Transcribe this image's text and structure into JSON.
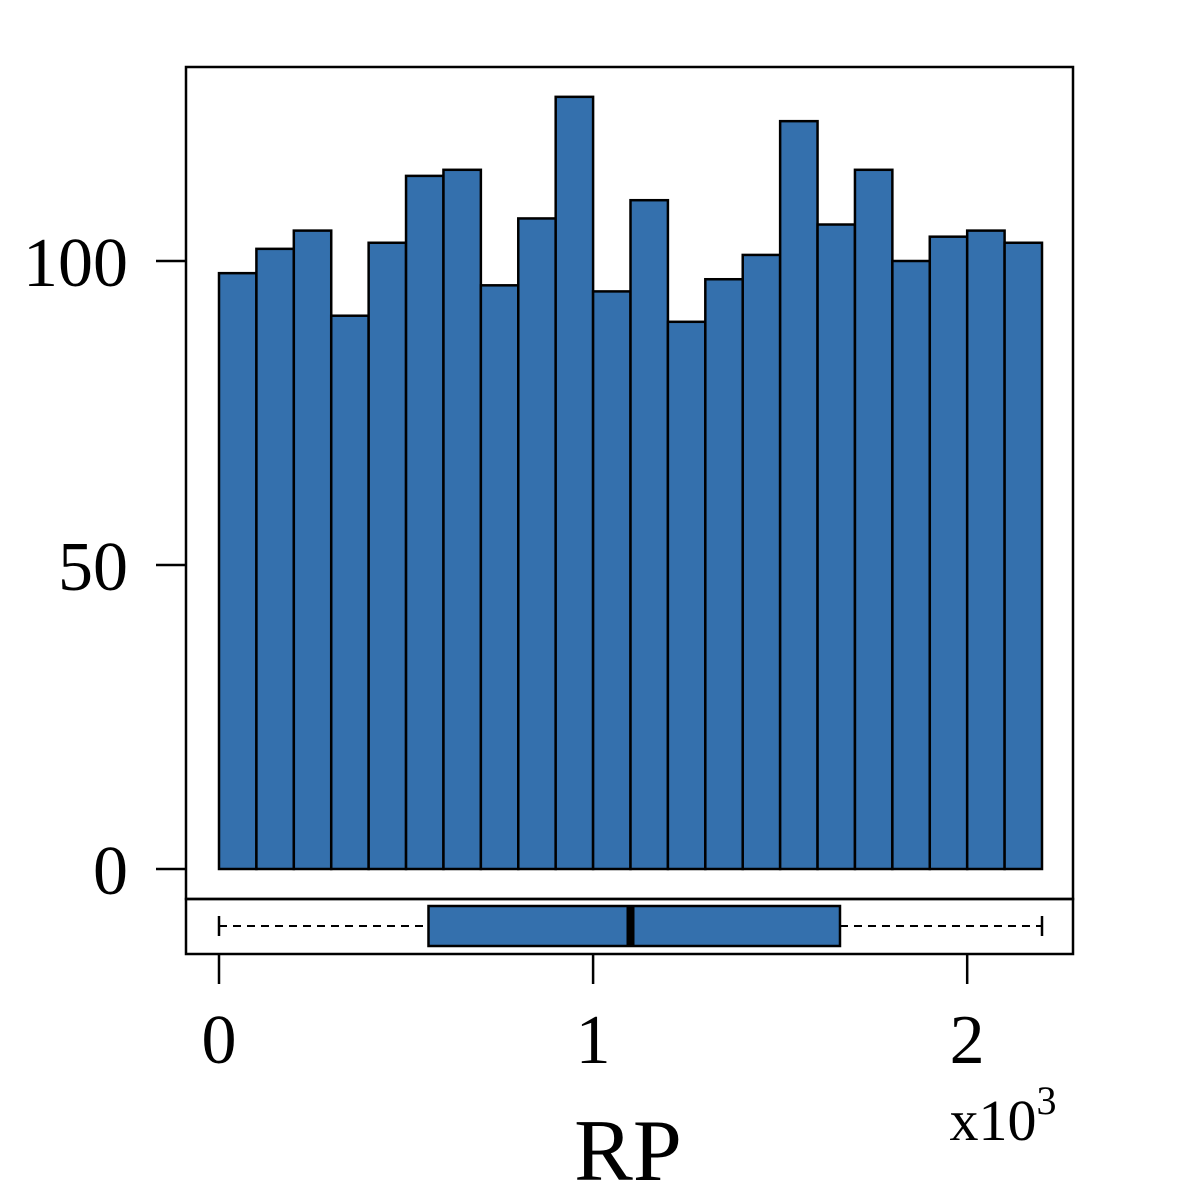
{
  "chart_data": {
    "type": "bar",
    "xlabel": "RP",
    "x_multiplier": {
      "base": "x10",
      "exponent": "3"
    },
    "bar_color": "#3470ad",
    "bin_edges": [
      0,
      100,
      200,
      300,
      400,
      500,
      600,
      700,
      800,
      900,
      1000,
      1100,
      1200,
      1300,
      1400,
      1500,
      1600,
      1700,
      1800,
      1900,
      2000,
      2100,
      2200
    ],
    "values": [
      98,
      102,
      105,
      91,
      103,
      114,
      115,
      96,
      107,
      127,
      95,
      110,
      90,
      97,
      101,
      123,
      106,
      115,
      100,
      104,
      105,
      103
    ],
    "xlim": [
      0,
      2200
    ],
    "ylim": [
      0,
      130
    ],
    "x_ticks": [
      {
        "value": 0,
        "label": "0"
      },
      {
        "value": 1000,
        "label": "1"
      },
      {
        "value": 2000,
        "label": "2"
      }
    ],
    "y_ticks": [
      {
        "value": 0,
        "label": "0"
      },
      {
        "value": 50,
        "label": "50"
      },
      {
        "value": 100,
        "label": "100"
      }
    ],
    "boxplot": {
      "min": 0,
      "q1": 560,
      "median": 1100,
      "q3": 1660,
      "max": 2200
    }
  }
}
